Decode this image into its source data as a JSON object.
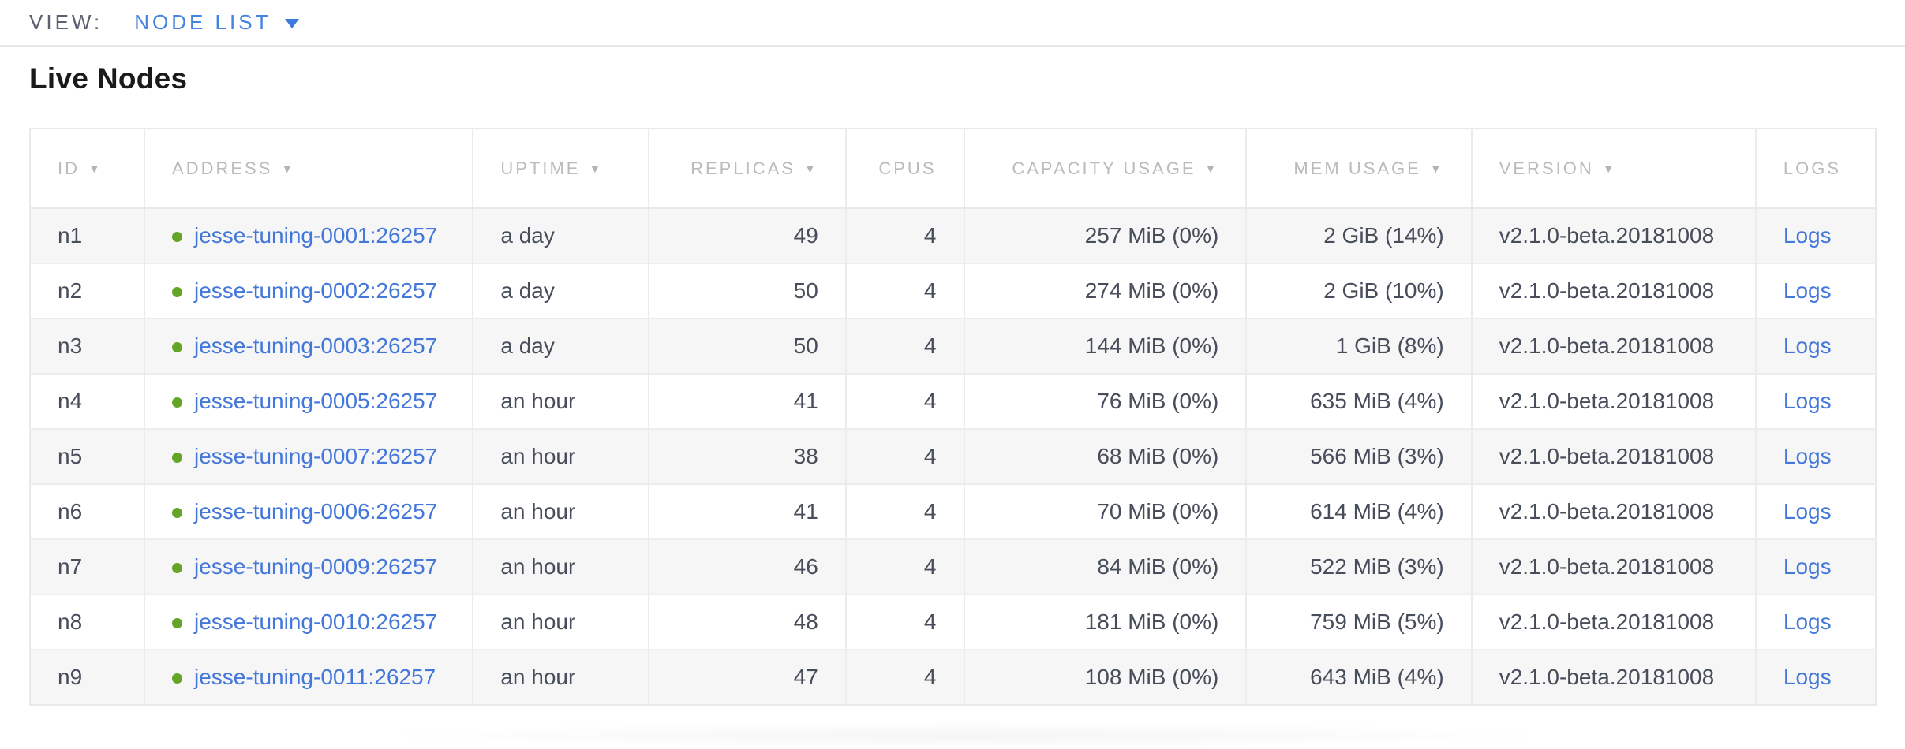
{
  "view_bar": {
    "label": "VIEW:",
    "selected": "NODE LIST"
  },
  "page": {
    "title": "Live Nodes"
  },
  "table": {
    "sort_arrow": "▼",
    "columns": [
      {
        "key": "id",
        "label": "ID",
        "sortable": true,
        "align": "left"
      },
      {
        "key": "address",
        "label": "ADDRESS",
        "sortable": true,
        "align": "left"
      },
      {
        "key": "uptime",
        "label": "UPTIME",
        "sortable": true,
        "align": "left"
      },
      {
        "key": "replicas",
        "label": "REPLICAS",
        "sortable": true,
        "align": "right"
      },
      {
        "key": "cpus",
        "label": "CPUS",
        "sortable": false,
        "align": "right"
      },
      {
        "key": "capacity",
        "label": "CAPACITY USAGE",
        "sortable": true,
        "align": "right"
      },
      {
        "key": "mem",
        "label": "MEM USAGE",
        "sortable": true,
        "align": "right"
      },
      {
        "key": "version",
        "label": "VERSION",
        "sortable": true,
        "align": "left"
      },
      {
        "key": "logs",
        "label": "LOGS",
        "sortable": false,
        "align": "left"
      }
    ],
    "rows": [
      {
        "id": "n1",
        "address": "jesse-tuning-0001:26257",
        "uptime": "a day",
        "replicas": "49",
        "cpus": "4",
        "capacity": "257 MiB (0%)",
        "mem": "2 GiB (14%)",
        "version": "v2.1.0-beta.20181008",
        "logs": "Logs"
      },
      {
        "id": "n2",
        "address": "jesse-tuning-0002:26257",
        "uptime": "a day",
        "replicas": "50",
        "cpus": "4",
        "capacity": "274 MiB (0%)",
        "mem": "2 GiB (10%)",
        "version": "v2.1.0-beta.20181008",
        "logs": "Logs"
      },
      {
        "id": "n3",
        "address": "jesse-tuning-0003:26257",
        "uptime": "a day",
        "replicas": "50",
        "cpus": "4",
        "capacity": "144 MiB (0%)",
        "mem": "1 GiB (8%)",
        "version": "v2.1.0-beta.20181008",
        "logs": "Logs"
      },
      {
        "id": "n4",
        "address": "jesse-tuning-0005:26257",
        "uptime": "an hour",
        "replicas": "41",
        "cpus": "4",
        "capacity": "76 MiB (0%)",
        "mem": "635 MiB (4%)",
        "version": "v2.1.0-beta.20181008",
        "logs": "Logs"
      },
      {
        "id": "n5",
        "address": "jesse-tuning-0007:26257",
        "uptime": "an hour",
        "replicas": "38",
        "cpus": "4",
        "capacity": "68 MiB (0%)",
        "mem": "566 MiB (3%)",
        "version": "v2.1.0-beta.20181008",
        "logs": "Logs"
      },
      {
        "id": "n6",
        "address": "jesse-tuning-0006:26257",
        "uptime": "an hour",
        "replicas": "41",
        "cpus": "4",
        "capacity": "70 MiB (0%)",
        "mem": "614 MiB (4%)",
        "version": "v2.1.0-beta.20181008",
        "logs": "Logs"
      },
      {
        "id": "n7",
        "address": "jesse-tuning-0009:26257",
        "uptime": "an hour",
        "replicas": "46",
        "cpus": "4",
        "capacity": "84 MiB (0%)",
        "mem": "522 MiB (3%)",
        "version": "v2.1.0-beta.20181008",
        "logs": "Logs"
      },
      {
        "id": "n8",
        "address": "jesse-tuning-0010:26257",
        "uptime": "an hour",
        "replicas": "48",
        "cpus": "4",
        "capacity": "181 MiB (0%)",
        "mem": "759 MiB (5%)",
        "version": "v2.1.0-beta.20181008",
        "logs": "Logs"
      },
      {
        "id": "n9",
        "address": "jesse-tuning-0011:26257",
        "uptime": "an hour",
        "replicas": "47",
        "cpus": "4",
        "capacity": "108 MiB (0%)",
        "mem": "643 MiB (4%)",
        "version": "v2.1.0-beta.20181008",
        "logs": "Logs"
      }
    ]
  },
  "colors": {
    "nav_link_blue": "#4583e2",
    "table_link_blue": "#4377d9",
    "live_dot_green": "#64a527",
    "header_text_gray": "#b9bbbf",
    "cell_text": "#474d5a",
    "stripe_bg": "#f6f6f6",
    "border": "#e9e9e9"
  }
}
